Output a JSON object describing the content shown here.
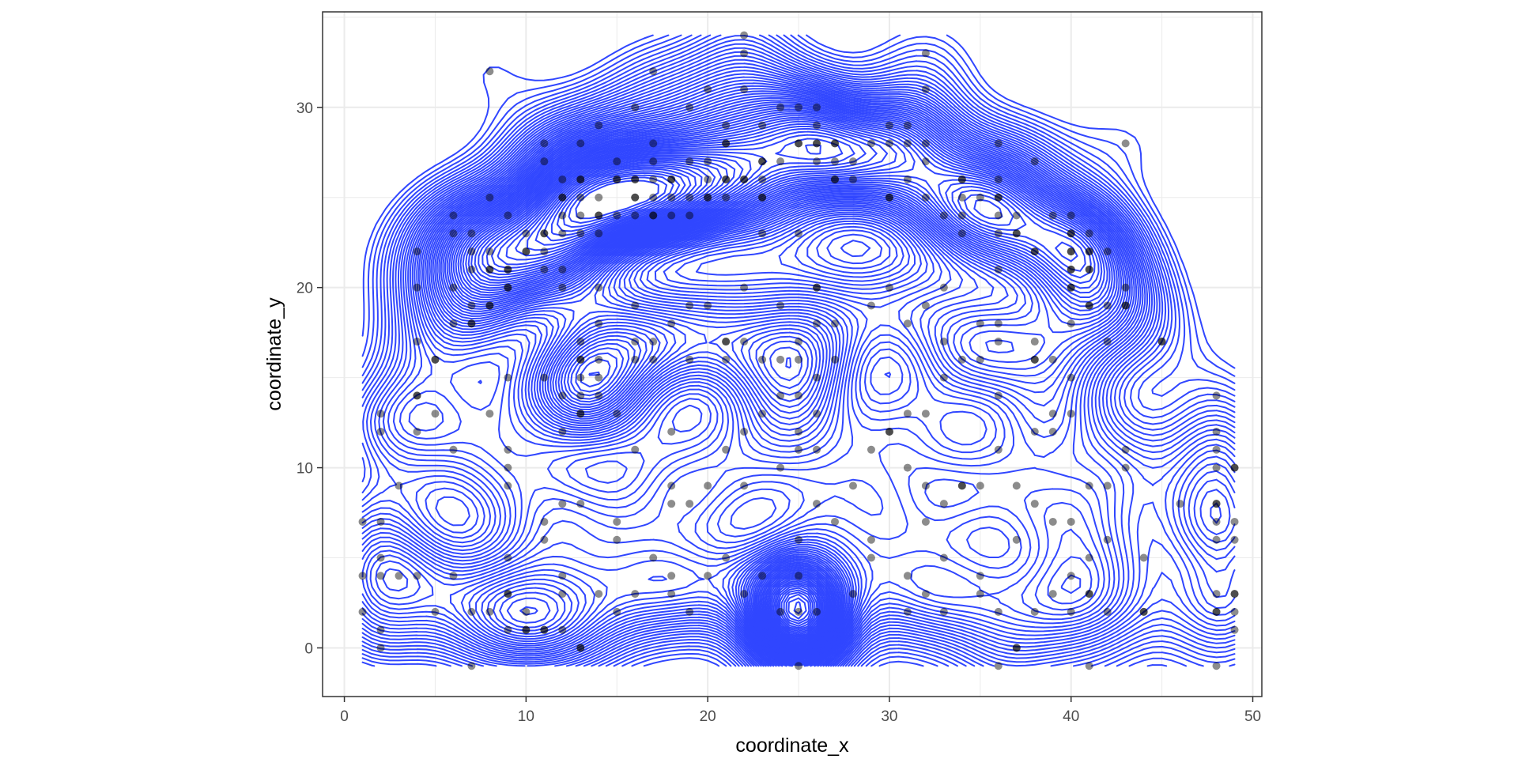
{
  "colors": {
    "point": "#000000",
    "contour": "#3046ff",
    "grid": "#ebebeb",
    "panel_border": "#333333"
  },
  "chart_data": {
    "type": "scatter",
    "title": "",
    "xlabel": "coordinate_x",
    "ylabel": "coordinate_y",
    "xlim": [
      -1.2,
      50.5
    ],
    "ylim": [
      -2.7,
      35.3
    ],
    "x_ticks": [
      0,
      10,
      20,
      30,
      40,
      50
    ],
    "y_ticks": [
      0,
      10,
      20,
      30
    ],
    "grid": true,
    "point_opacity": 0.45,
    "overlay": "2d density contours",
    "points": [
      [
        2,
        0
      ],
      [
        7,
        -1
      ],
      [
        10,
        1
      ],
      [
        11,
        1
      ],
      [
        13,
        0
      ],
      [
        25,
        -1
      ],
      [
        36,
        -1
      ],
      [
        37,
        0
      ],
      [
        41,
        -1
      ],
      [
        48,
        -1
      ],
      [
        2,
        1
      ],
      [
        5,
        2
      ],
      [
        7,
        2
      ],
      [
        9,
        1
      ],
      [
        12,
        1
      ],
      [
        15,
        2
      ],
      [
        19,
        2
      ],
      [
        24,
        2
      ],
      [
        25,
        2
      ],
      [
        26,
        2
      ],
      [
        31,
        2
      ],
      [
        33,
        2
      ],
      [
        36,
        2
      ],
      [
        38,
        2
      ],
      [
        40,
        2
      ],
      [
        42,
        2
      ],
      [
        44,
        2
      ],
      [
        48,
        2
      ],
      [
        49,
        2
      ],
      [
        1,
        2
      ],
      [
        8,
        2
      ],
      [
        9,
        3
      ],
      [
        10,
        2
      ],
      [
        12,
        3
      ],
      [
        14,
        3
      ],
      [
        16,
        3
      ],
      [
        18,
        3
      ],
      [
        22,
        3
      ],
      [
        28,
        3
      ],
      [
        32,
        3
      ],
      [
        35,
        3
      ],
      [
        39,
        3
      ],
      [
        41,
        3
      ],
      [
        48,
        3
      ],
      [
        49,
        3
      ],
      [
        1,
        4
      ],
      [
        2,
        4
      ],
      [
        3,
        4
      ],
      [
        4,
        4
      ],
      [
        6,
        4
      ],
      [
        12,
        4
      ],
      [
        18,
        4
      ],
      [
        20,
        4
      ],
      [
        23,
        4
      ],
      [
        25,
        4
      ],
      [
        31,
        4
      ],
      [
        35,
        4
      ],
      [
        40,
        4
      ],
      [
        44,
        5
      ],
      [
        2,
        5
      ],
      [
        9,
        5
      ],
      [
        17,
        5
      ],
      [
        21,
        5
      ],
      [
        29,
        5
      ],
      [
        33,
        5
      ],
      [
        41,
        5
      ],
      [
        42,
        6
      ],
      [
        48,
        6
      ],
      [
        49,
        6
      ],
      [
        11,
        6
      ],
      [
        15,
        6
      ],
      [
        25,
        6
      ],
      [
        29,
        6
      ],
      [
        37,
        6
      ],
      [
        40,
        7
      ],
      [
        1,
        7
      ],
      [
        2,
        7
      ],
      [
        11,
        7
      ],
      [
        15,
        7
      ],
      [
        27,
        7
      ],
      [
        32,
        7
      ],
      [
        39,
        7
      ],
      [
        48,
        7
      ],
      [
        49,
        7
      ],
      [
        12,
        8
      ],
      [
        13,
        8
      ],
      [
        19,
        8
      ],
      [
        26,
        8
      ],
      [
        33,
        8
      ],
      [
        38,
        8
      ],
      [
        46,
        8
      ],
      [
        48,
        8
      ],
      [
        18,
        8
      ],
      [
        20,
        9
      ],
      [
        22,
        9
      ],
      [
        32,
        9
      ],
      [
        34,
        9
      ],
      [
        35,
        9
      ],
      [
        37,
        9
      ],
      [
        42,
        9
      ],
      [
        3,
        9
      ],
      [
        9,
        9
      ],
      [
        18,
        9
      ],
      [
        28,
        9
      ],
      [
        49,
        10
      ],
      [
        9,
        10
      ],
      [
        24,
        10
      ],
      [
        31,
        10
      ],
      [
        41,
        9
      ],
      [
        43,
        10
      ],
      [
        48,
        10
      ],
      [
        6,
        11
      ],
      [
        9,
        11
      ],
      [
        16,
        11
      ],
      [
        21,
        11
      ],
      [
        26,
        11
      ],
      [
        29,
        11
      ],
      [
        36,
        11
      ],
      [
        43,
        11
      ],
      [
        48,
        11
      ],
      [
        2,
        12
      ],
      [
        4,
        12
      ],
      [
        12,
        12
      ],
      [
        18,
        12
      ],
      [
        22,
        12
      ],
      [
        25,
        12
      ],
      [
        30,
        12
      ],
      [
        38,
        12
      ],
      [
        39,
        12
      ],
      [
        48,
        12
      ],
      [
        2,
        13
      ],
      [
        5,
        13
      ],
      [
        8,
        13
      ],
      [
        13,
        13
      ],
      [
        15,
        13
      ],
      [
        23,
        13
      ],
      [
        26,
        13
      ],
      [
        31,
        13
      ],
      [
        32,
        13
      ],
      [
        39,
        13
      ],
      [
        40,
        13
      ],
      [
        4,
        14
      ],
      [
        12,
        14
      ],
      [
        14,
        14
      ],
      [
        13,
        14
      ],
      [
        24,
        14
      ],
      [
        25,
        14
      ],
      [
        36,
        14
      ],
      [
        48,
        14
      ],
      [
        9,
        15
      ],
      [
        11,
        15
      ],
      [
        13,
        15
      ],
      [
        14,
        15
      ],
      [
        26,
        15
      ],
      [
        33,
        15
      ],
      [
        40,
        15
      ],
      [
        5,
        16
      ],
      [
        13,
        16
      ],
      [
        14,
        16
      ],
      [
        16,
        16
      ],
      [
        17,
        16
      ],
      [
        19,
        16
      ],
      [
        21,
        16
      ],
      [
        23,
        16
      ],
      [
        24,
        16
      ],
      [
        25,
        16
      ],
      [
        27,
        16
      ],
      [
        34,
        16
      ],
      [
        35,
        16
      ],
      [
        38,
        16
      ],
      [
        39,
        16
      ],
      [
        4,
        17
      ],
      [
        13,
        17
      ],
      [
        16,
        17
      ],
      [
        17,
        17
      ],
      [
        21,
        17
      ],
      [
        22,
        17
      ],
      [
        25,
        17
      ],
      [
        33,
        17
      ],
      [
        36,
        17
      ],
      [
        38,
        17
      ],
      [
        42,
        17
      ],
      [
        45,
        17
      ],
      [
        6,
        18
      ],
      [
        7,
        18
      ],
      [
        14,
        18
      ],
      [
        18,
        18
      ],
      [
        26,
        18
      ],
      [
        27,
        18
      ],
      [
        31,
        18
      ],
      [
        35,
        18
      ],
      [
        36,
        18
      ],
      [
        40,
        18
      ],
      [
        7,
        19
      ],
      [
        8,
        19
      ],
      [
        16,
        19
      ],
      [
        19,
        19
      ],
      [
        20,
        19
      ],
      [
        24,
        19
      ],
      [
        29,
        19
      ],
      [
        32,
        19
      ],
      [
        41,
        19
      ],
      [
        42,
        19
      ],
      [
        43,
        19
      ],
      [
        4,
        20
      ],
      [
        6,
        20
      ],
      [
        9,
        20
      ],
      [
        12,
        20
      ],
      [
        14,
        20
      ],
      [
        22,
        20
      ],
      [
        26,
        20
      ],
      [
        30,
        20
      ],
      [
        33,
        20
      ],
      [
        40,
        20
      ],
      [
        43,
        20
      ],
      [
        7,
        21
      ],
      [
        8,
        21
      ],
      [
        9,
        21
      ],
      [
        11,
        21
      ],
      [
        12,
        21
      ],
      [
        36,
        21
      ],
      [
        40,
        21
      ],
      [
        41,
        21
      ],
      [
        4,
        22
      ],
      [
        7,
        22
      ],
      [
        8,
        22
      ],
      [
        10,
        22
      ],
      [
        11,
        22
      ],
      [
        38,
        22
      ],
      [
        40,
        22
      ],
      [
        41,
        22
      ],
      [
        42,
        22
      ],
      [
        6,
        23
      ],
      [
        7,
        23
      ],
      [
        10,
        23
      ],
      [
        11,
        23
      ],
      [
        12,
        23
      ],
      [
        13,
        23
      ],
      [
        14,
        23
      ],
      [
        25,
        23
      ],
      [
        23,
        23
      ],
      [
        34,
        23
      ],
      [
        36,
        23
      ],
      [
        37,
        23
      ],
      [
        40,
        23
      ],
      [
        41,
        23
      ],
      [
        6,
        24
      ],
      [
        9,
        24
      ],
      [
        12,
        24
      ],
      [
        13,
        24
      ],
      [
        14,
        24
      ],
      [
        15,
        24
      ],
      [
        16,
        24
      ],
      [
        17,
        24
      ],
      [
        18,
        24
      ],
      [
        19,
        24
      ],
      [
        33,
        24
      ],
      [
        34,
        24
      ],
      [
        36,
        24
      ],
      [
        37,
        24
      ],
      [
        39,
        24
      ],
      [
        40,
        24
      ],
      [
        8,
        25
      ],
      [
        12,
        25
      ],
      [
        13,
        25
      ],
      [
        14,
        25
      ],
      [
        16,
        25
      ],
      [
        17,
        25
      ],
      [
        18,
        25
      ],
      [
        20,
        25
      ],
      [
        21,
        25
      ],
      [
        23,
        25
      ],
      [
        30,
        25
      ],
      [
        32,
        25
      ],
      [
        34,
        25
      ],
      [
        35,
        25
      ],
      [
        36,
        25
      ],
      [
        12,
        26
      ],
      [
        13,
        26
      ],
      [
        15,
        26
      ],
      [
        16,
        26
      ],
      [
        17,
        26
      ],
      [
        18,
        26
      ],
      [
        20,
        26
      ],
      [
        21,
        26
      ],
      [
        22,
        26
      ],
      [
        23,
        26
      ],
      [
        27,
        26
      ],
      [
        28,
        26
      ],
      [
        31,
        26
      ],
      [
        34,
        26
      ],
      [
        36,
        26
      ],
      [
        11,
        27
      ],
      [
        15,
        27
      ],
      [
        17,
        27
      ],
      [
        19,
        27
      ],
      [
        20,
        27
      ],
      [
        23,
        27
      ],
      [
        24,
        27
      ],
      [
        26,
        27
      ],
      [
        27,
        27
      ],
      [
        28,
        27
      ],
      [
        32,
        27
      ],
      [
        38,
        27
      ],
      [
        11,
        28
      ],
      [
        13,
        28
      ],
      [
        17,
        28
      ],
      [
        21,
        28
      ],
      [
        25,
        28
      ],
      [
        26,
        28
      ],
      [
        27,
        28
      ],
      [
        29,
        28
      ],
      [
        30,
        28
      ],
      [
        31,
        28
      ],
      [
        32,
        28
      ],
      [
        36,
        28
      ],
      [
        43,
        28
      ],
      [
        14,
        29
      ],
      [
        21,
        29
      ],
      [
        23,
        29
      ],
      [
        26,
        29
      ],
      [
        30,
        29
      ],
      [
        31,
        29
      ],
      [
        16,
        30
      ],
      [
        19,
        30
      ],
      [
        24,
        30
      ],
      [
        25,
        30
      ],
      [
        26,
        30
      ],
      [
        20,
        31
      ],
      [
        22,
        31
      ],
      [
        32,
        31
      ],
      [
        8,
        32
      ],
      [
        17,
        32
      ],
      [
        22,
        33
      ],
      [
        32,
        33
      ],
      [
        22,
        34
      ]
    ],
    "dark_points": [
      [
        11,
        1
      ],
      [
        13,
        0
      ],
      [
        37,
        0
      ],
      [
        9,
        3
      ],
      [
        41,
        3
      ],
      [
        49,
        3
      ],
      [
        48,
        2
      ],
      [
        49,
        1
      ],
      [
        44,
        2
      ],
      [
        48,
        8
      ],
      [
        49,
        10
      ],
      [
        25,
        11
      ],
      [
        30,
        12
      ],
      [
        34,
        9
      ],
      [
        4,
        14
      ],
      [
        5,
        16
      ],
      [
        13,
        16
      ],
      [
        13,
        13
      ],
      [
        8,
        19
      ],
      [
        7,
        18
      ],
      [
        9,
        20
      ],
      [
        8,
        21
      ],
      [
        9,
        21
      ],
      [
        10,
        22
      ],
      [
        11,
        23
      ],
      [
        12,
        25
      ],
      [
        13,
        26
      ],
      [
        15,
        26
      ],
      [
        16,
        25
      ],
      [
        14,
        24
      ],
      [
        17,
        24
      ],
      [
        18,
        26
      ],
      [
        16,
        26
      ],
      [
        20,
        25
      ],
      [
        21,
        26
      ],
      [
        22,
        26
      ],
      [
        23,
        25
      ],
      [
        23,
        27
      ],
      [
        25,
        28
      ],
      [
        26,
        28
      ],
      [
        27,
        28
      ],
      [
        27,
        26
      ],
      [
        26,
        20
      ],
      [
        21,
        28
      ],
      [
        19,
        25
      ],
      [
        30,
        25
      ],
      [
        21,
        17
      ],
      [
        36,
        25
      ],
      [
        37,
        23
      ],
      [
        38,
        22
      ],
      [
        40,
        22
      ],
      [
        40,
        23
      ],
      [
        41,
        22
      ],
      [
        40,
        21
      ],
      [
        41,
        21
      ],
      [
        40,
        20
      ],
      [
        41,
        19
      ],
      [
        43,
        19
      ],
      [
        34,
        26
      ],
      [
        38,
        16
      ],
      [
        45,
        17
      ],
      [
        10,
        1
      ]
    ]
  }
}
